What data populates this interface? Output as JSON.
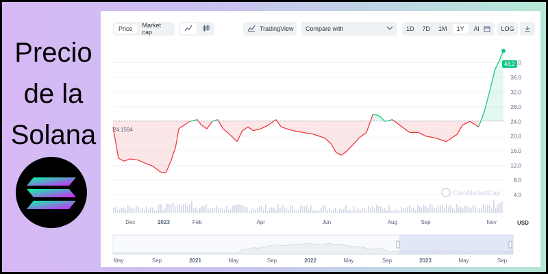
{
  "side": {
    "title_lines": [
      "Precio",
      "de la",
      "Solana"
    ]
  },
  "toolbar": {
    "price_tab": "Price",
    "market_cap_tab": "Market cap",
    "line_icon": "line-chart-icon",
    "candle_icon": "candlestick-icon",
    "tradingview_label": "TradingView",
    "compare_placeholder": "Compare with",
    "ranges": [
      "1D",
      "7D",
      "1M",
      "1Y",
      "All"
    ],
    "active_range": "1Y",
    "calendar_icon": "calendar-icon",
    "log_label": "LOG",
    "download_icon": "download-icon"
  },
  "chart": {
    "watermark": "CoinMarketCap",
    "baseline_label": "24.1594",
    "current_price_label": "43.2",
    "currency": "USD",
    "colors": {
      "up": "#16c784",
      "down": "#ea3943",
      "accent": "#16c784"
    }
  },
  "navigator": {
    "x_labels": [
      "May",
      "Sep",
      "2021",
      "May",
      "Sep",
      "2022",
      "May",
      "Sep",
      "2023",
      "May",
      "Sep"
    ]
  },
  "chart_data": {
    "type": "line",
    "xlabel": "",
    "ylabel": "",
    "x_tick_labels": [
      "Dec",
      "2023",
      "Feb",
      "Apr",
      "Jun",
      "Aug",
      "Sep",
      "Nov"
    ],
    "y_ticks": [
      4.0,
      8.0,
      12.0,
      16.0,
      20.0,
      24.0,
      28.0,
      32.0,
      36.0,
      40.0
    ],
    "ylim": [
      0,
      44
    ],
    "baseline": 24.1594,
    "grid": true,
    "series": [
      {
        "x": [
          "2022-11-15",
          "2022-11-20",
          "2022-11-25",
          "2022-12-01",
          "2022-12-08",
          "2022-12-15",
          "2022-12-22",
          "2022-12-29",
          "2023-01-03",
          "2023-01-08",
          "2023-01-12",
          "2023-01-15",
          "2023-01-20",
          "2023-01-25",
          "2023-02-01",
          "2023-02-05",
          "2023-02-10",
          "2023-02-15",
          "2023-02-20",
          "2023-02-25",
          "2023-03-03",
          "2023-03-10",
          "2023-03-15",
          "2023-03-20",
          "2023-03-25",
          "2023-04-01",
          "2023-04-08",
          "2023-04-15",
          "2023-04-20",
          "2023-04-25",
          "2023-05-01",
          "2023-05-10",
          "2023-05-20",
          "2023-05-30",
          "2023-06-05",
          "2023-06-10",
          "2023-06-15",
          "2023-06-20",
          "2023-06-25",
          "2023-07-01",
          "2023-07-08",
          "2023-07-14",
          "2023-07-20",
          "2023-07-25",
          "2023-08-01",
          "2023-08-10",
          "2023-08-17",
          "2023-08-25",
          "2023-09-01",
          "2023-09-10",
          "2023-09-20",
          "2023-09-30",
          "2023-10-05",
          "2023-10-12",
          "2023-10-20",
          "2023-10-25",
          "2023-10-30",
          "2023-11-04",
          "2023-11-08",
          "2023-11-12"
        ],
        "values": [
          22.5,
          14.0,
          13.2,
          13.8,
          13.5,
          12.6,
          11.8,
          10.2,
          10.0,
          13.5,
          17.0,
          22.0,
          23.0,
          24.0,
          24.5,
          23.0,
          22.0,
          24.0,
          24.5,
          22.0,
          20.5,
          18.5,
          21.5,
          22.5,
          21.5,
          22.0,
          23.0,
          24.5,
          22.5,
          22.0,
          21.5,
          21.0,
          20.5,
          19.5,
          18.0,
          15.5,
          14.8,
          16.0,
          17.5,
          19.5,
          21.0,
          26.0,
          25.5,
          24.0,
          24.5,
          22.5,
          21.0,
          21.0,
          20.0,
          19.5,
          18.5,
          20.5,
          23.0,
          24.0,
          22.5,
          26.5,
          32.0,
          38.0,
          40.5,
          43.2
        ]
      }
    ],
    "volume_note": ""
  }
}
